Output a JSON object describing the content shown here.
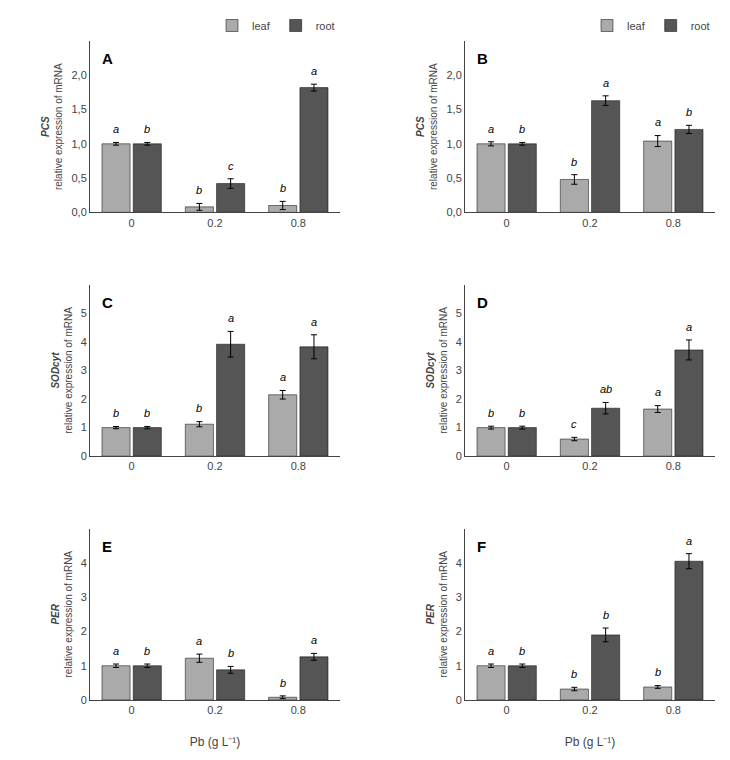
{
  "chart_data": [
    {
      "type": "bar",
      "title": "A",
      "categories": [
        "0",
        "0.2",
        "0.8"
      ],
      "series": [
        {
          "name": "leaf",
          "color": "#aaaaaa",
          "values": [
            1.0,
            0.08,
            0.1
          ],
          "errors": [
            0.02,
            0.05,
            0.06
          ],
          "annotations": [
            "a",
            "b",
            "b"
          ]
        },
        {
          "name": "root",
          "color": "#555555",
          "values": [
            1.0,
            0.42,
            1.82
          ],
          "errors": [
            0.02,
            0.07,
            0.05
          ],
          "annotations": [
            "b",
            "c",
            "a"
          ]
        }
      ],
      "ylabel": [
        "PCS",
        "relative expression of mRNA"
      ],
      "ylim": [
        0,
        2.5
      ],
      "yticks": [
        {
          "value": 0.0,
          "label": "0,0"
        },
        {
          "value": 0.5,
          "label": "0,5"
        },
        {
          "value": 1.0,
          "label": "1,0"
        },
        {
          "value": 1.5,
          "label": "1,5"
        },
        {
          "value": 2.0,
          "label": "2,0"
        }
      ],
      "grid": false,
      "legend": "upper right"
    },
    {
      "type": "bar",
      "title": "B",
      "categories": [
        "0",
        "0.2",
        "0.8"
      ],
      "series": [
        {
          "name": "leaf",
          "color": "#aaaaaa",
          "values": [
            1.0,
            0.48,
            1.04
          ],
          "errors": [
            0.03,
            0.07,
            0.08
          ],
          "annotations": [
            "a",
            "b",
            "a"
          ]
        },
        {
          "name": "root",
          "color": "#555555",
          "values": [
            1.0,
            1.63,
            1.21
          ],
          "errors": [
            0.02,
            0.07,
            0.06
          ],
          "annotations": [
            "b",
            "a",
            "b"
          ]
        }
      ],
      "ylabel": [
        "PCS",
        "relative expression of mRNA"
      ],
      "ylim": [
        0,
        2.5
      ],
      "yticks": [
        {
          "value": 0.0,
          "label": "0,0"
        },
        {
          "value": 0.5,
          "label": "0,5"
        },
        {
          "value": 1.0,
          "label": "1,0"
        },
        {
          "value": 1.5,
          "label": "1,5"
        },
        {
          "value": 2.0,
          "label": "2,0"
        }
      ],
      "grid": false,
      "legend": "upper right"
    },
    {
      "type": "bar",
      "title": "C",
      "categories": [
        "0",
        "0.2",
        "0.8"
      ],
      "series": [
        {
          "name": "leaf",
          "color": "#aaaaaa",
          "values": [
            1.0,
            1.12,
            2.15
          ],
          "errors": [
            0.04,
            0.09,
            0.15
          ],
          "annotations": [
            "b",
            "b",
            "a"
          ]
        },
        {
          "name": "root",
          "color": "#555555",
          "values": [
            1.0,
            3.92,
            3.83
          ],
          "errors": [
            0.04,
            0.45,
            0.42
          ],
          "annotations": [
            "b",
            "a",
            "a"
          ]
        }
      ],
      "ylabel": [
        "SODcyt",
        "relative expression of mRNA"
      ],
      "ylim": [
        0,
        6
      ],
      "yticks": [
        0,
        1,
        2,
        3,
        4,
        5
      ],
      "grid": false
    },
    {
      "type": "bar",
      "title": "D",
      "categories": [
        "0",
        "0.2",
        "0.8"
      ],
      "series": [
        {
          "name": "leaf",
          "color": "#aaaaaa",
          "values": [
            1.0,
            0.6,
            1.65
          ],
          "errors": [
            0.05,
            0.06,
            0.12
          ],
          "annotations": [
            "b",
            "c",
            "a"
          ]
        },
        {
          "name": "root",
          "color": "#555555",
          "values": [
            1.0,
            1.68,
            3.72
          ],
          "errors": [
            0.05,
            0.2,
            0.35
          ],
          "annotations": [
            "b",
            "ab",
            "a"
          ]
        }
      ],
      "ylabel": [
        "SODcyt",
        "relative expression of mRNA"
      ],
      "ylim": [
        0,
        6
      ],
      "yticks": [
        0,
        1,
        2,
        3,
        4,
        5
      ],
      "grid": false
    },
    {
      "type": "bar",
      "title": "E",
      "categories": [
        "0",
        "0.2",
        "0.8"
      ],
      "series": [
        {
          "name": "leaf",
          "color": "#aaaaaa",
          "values": [
            1.0,
            1.22,
            0.08
          ],
          "errors": [
            0.05,
            0.12,
            0.04
          ],
          "annotations": [
            "a",
            "a",
            "b"
          ]
        },
        {
          "name": "root",
          "color": "#555555",
          "values": [
            1.0,
            0.88,
            1.26
          ],
          "errors": [
            0.05,
            0.1,
            0.1
          ],
          "annotations": [
            "b",
            "b",
            "a"
          ]
        }
      ],
      "ylabel": [
        "PER",
        "relative expression of mRNA"
      ],
      "xlabel": "Pb (g L⁻¹)",
      "ylim": [
        0,
        5
      ],
      "yticks": [
        0,
        1,
        2,
        3,
        4
      ],
      "grid": false
    },
    {
      "type": "bar",
      "title": "F",
      "categories": [
        "0",
        "0.2",
        "0.8"
      ],
      "series": [
        {
          "name": "leaf",
          "color": "#aaaaaa",
          "values": [
            1.0,
            0.32,
            0.38
          ],
          "errors": [
            0.05,
            0.05,
            0.04
          ],
          "annotations": [
            "a",
            "b",
            "b"
          ]
        },
        {
          "name": "root",
          "color": "#555555",
          "values": [
            1.0,
            1.9,
            4.05
          ],
          "errors": [
            0.05,
            0.2,
            0.22
          ],
          "annotations": [
            "b",
            "b",
            "a"
          ]
        }
      ],
      "ylabel": [
        "PER",
        "relative expression of mRNA"
      ],
      "xlabel": "Pb (g L⁻¹)",
      "ylim": [
        0,
        5
      ],
      "yticks": [
        0,
        1,
        2,
        3,
        4
      ],
      "grid": false
    }
  ]
}
